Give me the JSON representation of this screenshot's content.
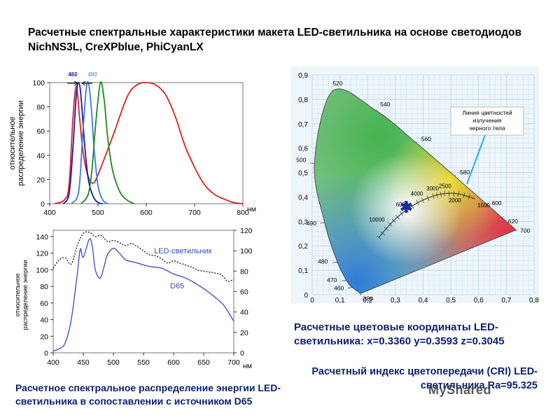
{
  "title": "Расчетные спектральные характеристики макета LED-светильника на основе светодиодов NichNS3L, CreXPblue, PhiCyanLX",
  "chart_data": [
    {
      "type": "line",
      "ylabel": [
        "относительное",
        "распределение энергии"
      ],
      "xunit": "нм",
      "xlim": [
        400,
        800
      ],
      "ylim": [
        0,
        100
      ],
      "xticks": [
        "400",
        "500",
        "600",
        "700",
        "800"
      ],
      "yticks": [
        "0",
        "20",
        "40",
        "60",
        "80",
        "100"
      ],
      "peak_labels": [
        "460",
        "480"
      ],
      "colors": [
        "#e02020",
        "#1818b0",
        "#3a7be0",
        "#1b8a1b"
      ],
      "series": [
        {
          "x": [
            410,
            430,
            440,
            448,
            455,
            462,
            470,
            480,
            490,
            500,
            530,
            560,
            580,
            600,
            620,
            640,
            660,
            680,
            700,
            720,
            740,
            760,
            780,
            800
          ],
          "y": [
            0,
            3,
            15,
            70,
            97,
            70,
            40,
            22,
            17,
            24,
            55,
            88,
            98,
            100,
            98,
            90,
            72,
            48,
            30,
            16,
            8,
            4,
            1,
            0
          ]
        },
        {
          "x": [
            428,
            440,
            448,
            455,
            460,
            465,
            472,
            480,
            490,
            500,
            510
          ],
          "y": [
            0,
            8,
            45,
            90,
            100,
            88,
            50,
            20,
            6,
            1,
            0
          ]
        },
        {
          "x": [
            445,
            460,
            468,
            475,
            480,
            486,
            492,
            500,
            510,
            520
          ],
          "y": [
            0,
            10,
            55,
            92,
            100,
            80,
            45,
            15,
            3,
            0
          ]
        },
        {
          "x": [
            465,
            480,
            488,
            495,
            505,
            513,
            520,
            530,
            545,
            560,
            575
          ],
          "y": [
            0,
            8,
            30,
            65,
            100,
            85,
            55,
            28,
            10,
            3,
            0
          ]
        }
      ]
    },
    {
      "type": "line",
      "ylabel": [
        "относительное",
        "распределение энергии"
      ],
      "xunit": "нм",
      "xlim": [
        400,
        700
      ],
      "ylim": [
        0,
        140
      ],
      "y2lim": [
        0,
        120
      ],
      "xticks": [
        "400",
        "450",
        "500",
        "550",
        "600",
        "650",
        "700"
      ],
      "yticks": [
        "0",
        "20",
        "40",
        "60",
        "80",
        "100",
        "120",
        "140"
      ],
      "y2ticks": [
        "0",
        "20",
        "40",
        "60",
        "80",
        "100",
        "120"
      ],
      "colors": [
        "#3a48c0",
        "#222222"
      ],
      "series": [
        {
          "name": "LED-светильник",
          "axis": "left",
          "x": [
            400,
            410,
            420,
            430,
            440,
            445,
            450,
            460,
            465,
            470,
            478,
            485,
            490,
            500,
            510,
            520,
            530,
            540,
            560,
            580,
            600,
            620,
            640,
            660,
            680,
            690,
            700
          ],
          "y": [
            2,
            5,
            12,
            40,
            95,
            125,
            115,
            137,
            128,
            100,
            90,
            105,
            118,
            126,
            120,
            112,
            110,
            108,
            104,
            102,
            95,
            90,
            82,
            72,
            60,
            50,
            38
          ]
        },
        {
          "name": "D65",
          "axis": "right",
          "x": [
            400,
            410,
            420,
            430,
            440,
            450,
            460,
            470,
            480,
            490,
            500,
            510,
            520,
            530,
            540,
            550,
            560,
            570,
            580,
            590,
            600,
            610,
            620,
            630,
            640,
            650,
            660,
            670,
            680,
            690,
            700
          ],
          "y": [
            83,
            91,
            93,
            87,
            105,
            117,
            118,
            114,
            115,
            109,
            110,
            108,
            105,
            107,
            104,
            100,
            96,
            95,
            92,
            88,
            90,
            88,
            86,
            84,
            81,
            80,
            79,
            78,
            76,
            70,
            72
          ]
        }
      ]
    },
    {
      "type": "scatter",
      "xlim": [
        0,
        0.8
      ],
      "ylim": [
        0,
        0.9
      ],
      "xticks": [
        "0",
        "0,1",
        "0,2",
        "0,3",
        "0,4",
        "0,5",
        "0,6",
        "0,7",
        "0,8"
      ],
      "yticks": [
        "0",
        "0,1",
        "0,2",
        "0,3",
        "0,4",
        "0,5",
        "0,6",
        "0,7",
        "0,8",
        "0,9"
      ],
      "locus": [
        {
          "nm": "380",
          "x": 0.174,
          "y": 0.005
        },
        {
          "nm": "460",
          "x": 0.144,
          "y": 0.03
        },
        {
          "nm": "470",
          "x": 0.124,
          "y": 0.058
        },
        {
          "nm": "480",
          "x": 0.091,
          "y": 0.133
        },
        {
          "nm": "490",
          "x": 0.045,
          "y": 0.295
        },
        {
          "nm": "500",
          "x": 0.008,
          "y": 0.538
        },
        {
          "nm": "520",
          "x": 0.074,
          "y": 0.834
        },
        {
          "nm": "540",
          "x": 0.23,
          "y": 0.754
        },
        {
          "nm": "560",
          "x": 0.373,
          "y": 0.624
        },
        {
          "nm": "580",
          "x": 0.512,
          "y": 0.487
        },
        {
          "nm": "600",
          "x": 0.627,
          "y": 0.373
        },
        {
          "nm": "620",
          "x": 0.691,
          "y": 0.309
        },
        {
          "nm": "700",
          "x": 0.735,
          "y": 0.265
        }
      ],
      "planckian": [
        {
          "K": "10000",
          "x": 0.281,
          "y": 0.288
        },
        {
          "K": "6000",
          "x": 0.322,
          "y": 0.332
        },
        {
          "K": "4000",
          "x": 0.38,
          "y": 0.377
        },
        {
          "K": "3000",
          "x": 0.437,
          "y": 0.404
        },
        {
          "K": "2500",
          "x": 0.477,
          "y": 0.414
        },
        {
          "K": "2000",
          "x": 0.527,
          "y": 0.413
        },
        {
          "K": "1500",
          "x": 0.586,
          "y": 0.393
        }
      ],
      "point": {
        "x": 0.336,
        "y": 0.3593
      },
      "annotation": "Линия цветностей излучения черного тела"
    }
  ],
  "captions": {
    "coords": "Расчетные цветовые координаты LED-светильника: x=0.3360 y=0.3593 z=0.3045",
    "cri": "Расчетный индекс цветопередачи (CRI) LED-светильника Ra=95.325",
    "spd": "Расчетное спектральное распределение энергии LED-светильника в сопоставлении с источником D65"
  },
  "watermark": "MyShared"
}
